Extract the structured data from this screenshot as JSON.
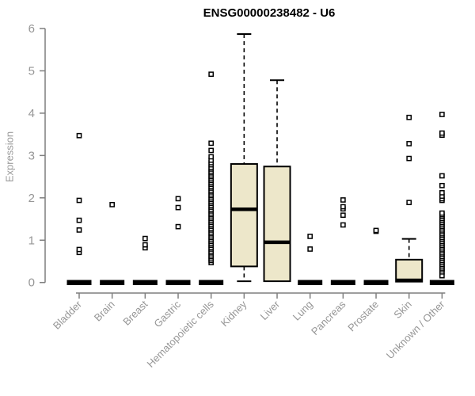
{
  "chart_data": {
    "type": "boxplot",
    "title": "ENSG00000238482 - U6",
    "ylabel": "Expression",
    "xlabel": "",
    "ylim": [
      0,
      6
    ],
    "yticks": [
      0,
      1,
      2,
      3,
      4,
      5,
      6
    ],
    "grid": false,
    "legend": "none",
    "colors": {
      "box_fill": "#EDE7CA",
      "box_stroke": "#000000",
      "median": "#000000",
      "axis": "#7f7f7f",
      "tick_text": "#969696",
      "title_text": "#000000",
      "outlier_fill": "#ffffff",
      "outlier_stroke": "#000000"
    },
    "categories": [
      "Bladder",
      "Brain",
      "Breast",
      "Gastric",
      "Hematopoietic cells",
      "Kidney",
      "Liver",
      "Lung",
      "Pancreas",
      "Prostate",
      "Skin",
      "Unknown / Other"
    ],
    "boxes": [
      {
        "category": "Bladder",
        "q1": 0,
        "median": 0,
        "q3": 0,
        "whisker_low": 0,
        "whisker_high": 0,
        "outliers": [
          0.71,
          0.78,
          1.24,
          1.47,
          1.94,
          3.47
        ]
      },
      {
        "category": "Brain",
        "q1": 0,
        "median": 0,
        "q3": 0,
        "whisker_low": 0,
        "whisker_high": 0,
        "outliers": [
          1.84
        ]
      },
      {
        "category": "Breast",
        "q1": 0,
        "median": 0,
        "q3": 0,
        "whisker_low": 0,
        "whisker_high": 0,
        "outliers": [
          0.82,
          0.89,
          1.04
        ]
      },
      {
        "category": "Gastric",
        "q1": 0,
        "median": 0,
        "q3": 0,
        "whisker_low": 0,
        "whisker_high": 0,
        "outliers": [
          1.32,
          1.77,
          1.98
        ]
      },
      {
        "category": "Hematopoietic cells",
        "q1": 0,
        "median": 0,
        "q3": 0,
        "whisker_low": 0,
        "whisker_high": 0,
        "outliers": [
          0.47,
          0.52,
          0.56,
          0.61,
          0.65,
          0.7,
          0.74,
          0.79,
          0.83,
          0.88,
          0.92,
          0.97,
          1.01,
          1.06,
          1.1,
          1.15,
          1.19,
          1.24,
          1.28,
          1.33,
          1.37,
          1.42,
          1.46,
          1.51,
          1.55,
          1.6,
          1.64,
          1.69,
          1.73,
          1.78,
          1.82,
          1.87,
          1.91,
          1.96,
          2.0,
          2.05,
          2.09,
          2.14,
          2.18,
          2.23,
          2.27,
          2.32,
          2.36,
          2.41,
          2.45,
          2.5,
          2.54,
          2.59,
          2.63,
          2.68,
          2.72,
          2.78,
          2.83,
          2.89,
          2.97,
          3.12,
          3.29,
          4.92
        ]
      },
      {
        "category": "Kidney",
        "q1": 0.38,
        "median": 1.73,
        "q3": 2.8,
        "whisker_low": 0.03,
        "whisker_high": 5.87,
        "outliers": []
      },
      {
        "category": "Liver",
        "q1": 0.03,
        "median": 0.95,
        "q3": 2.74,
        "whisker_low": 0.03,
        "whisker_high": 4.78,
        "outliers": []
      },
      {
        "category": "Lung",
        "q1": 0,
        "median": 0,
        "q3": 0,
        "whisker_low": 0,
        "whisker_high": 0,
        "outliers": [
          0.79,
          1.09
        ]
      },
      {
        "category": "Pancreas",
        "q1": 0,
        "median": 0,
        "q3": 0,
        "whisker_low": 0,
        "whisker_high": 0,
        "outliers": [
          1.36,
          1.59,
          1.74,
          1.79,
          1.95
        ]
      },
      {
        "category": "Prostate",
        "q1": 0,
        "median": 0,
        "q3": 0,
        "whisker_low": 0,
        "whisker_high": 0,
        "outliers": [
          1.21,
          1.23
        ]
      },
      {
        "category": "Skin",
        "q1": 0.02,
        "median": 0.05,
        "q3": 0.54,
        "whisker_low": 0.02,
        "whisker_high": 1.03,
        "outliers": [
          1.89,
          2.93,
          3.28,
          3.9
        ]
      },
      {
        "category": "Unknown / Other",
        "q1": 0,
        "median": 0,
        "q3": 0,
        "whisker_low": 0,
        "whisker_high": 0,
        "outliers": [
          0.16,
          0.25,
          0.3,
          0.34,
          0.39,
          0.43,
          0.48,
          0.52,
          0.57,
          0.61,
          0.66,
          0.7,
          0.75,
          0.79,
          0.84,
          0.88,
          0.93,
          0.97,
          1.02,
          1.06,
          1.11,
          1.15,
          1.2,
          1.24,
          1.29,
          1.33,
          1.38,
          1.42,
          1.47,
          1.51,
          1.56,
          1.6,
          1.64,
          1.94,
          1.98,
          2.04,
          2.12,
          2.29,
          2.52,
          3.48,
          3.53,
          3.97
        ]
      }
    ]
  }
}
